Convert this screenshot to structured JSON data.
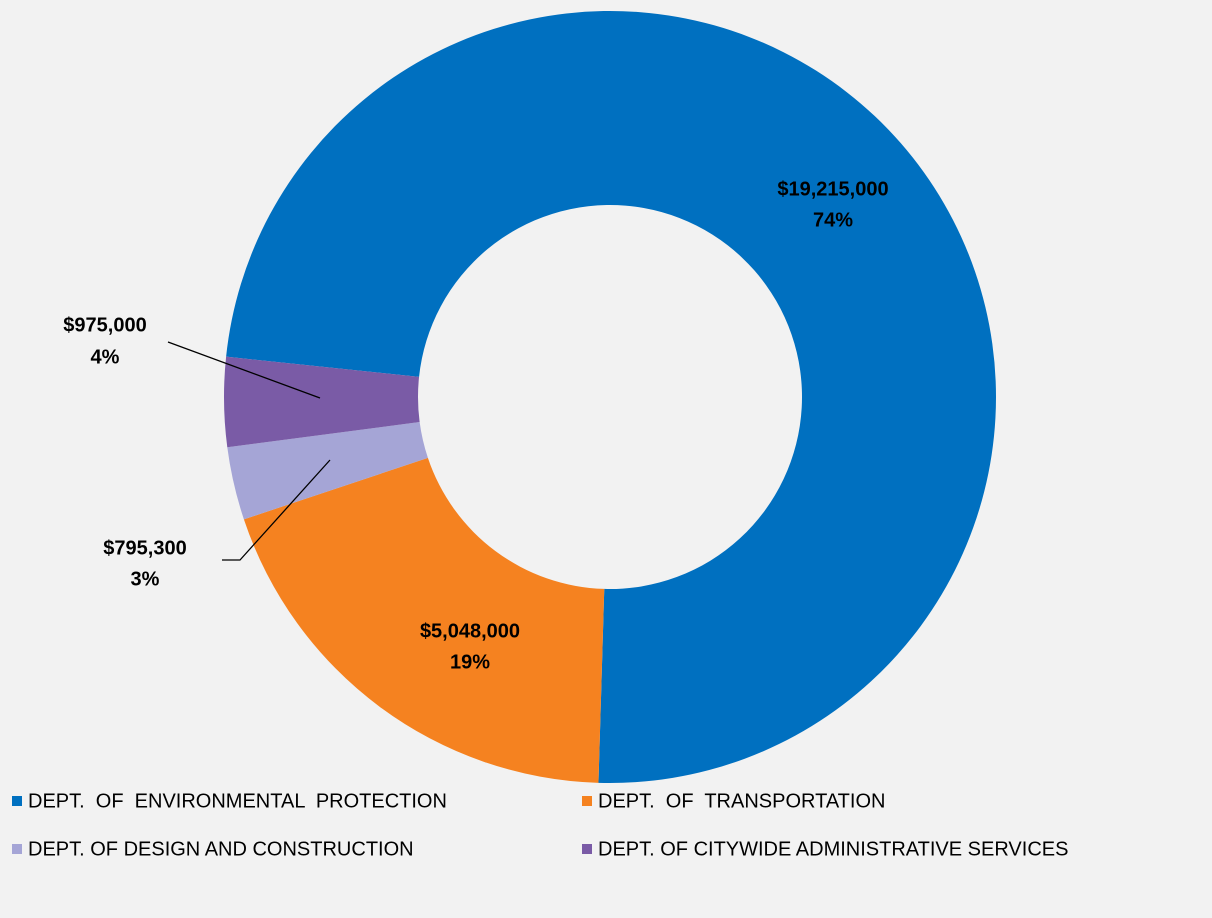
{
  "chart_data": {
    "type": "donut",
    "categories": [
      "DEPT.  OF  ENVIRONMENTAL  PROTECTION",
      "DEPT.  OF  TRANSPORTATION",
      "DEPT. OF DESIGN AND CONSTRUCTION",
      "DEPT. OF CITYWIDE ADMINISTRATIVE SERVICES"
    ],
    "values": [
      19215000,
      5048000,
      795300,
      975000
    ],
    "value_labels": [
      "$19,215,000",
      "$5,048,000",
      "$795,300",
      "$975,000"
    ],
    "percent_labels": [
      "74%",
      "19%",
      "3%",
      "4%"
    ],
    "colors": [
      "#0070c0",
      "#f58220",
      "#a5a5d6",
      "#7a5ba6"
    ],
    "legend": "bottom"
  }
}
